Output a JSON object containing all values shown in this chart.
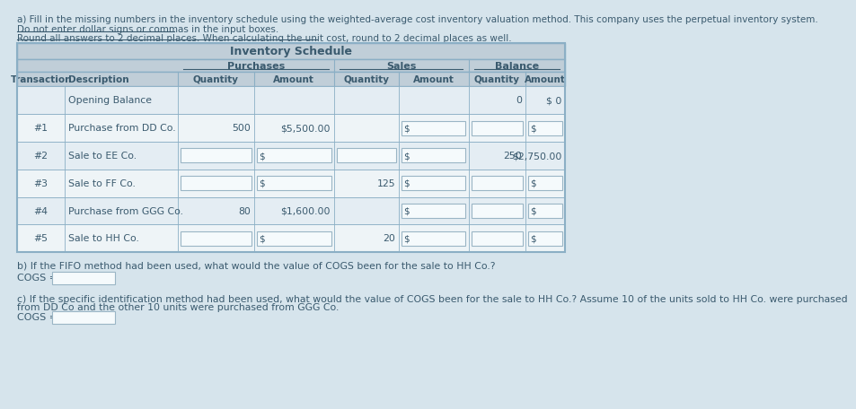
{
  "background_color": "#d6e4ec",
  "title_text": "a) Fill in the missing numbers in the inventory schedule using the weighted-average cost inventory valuation method. This company uses the perpetual inventory system.",
  "note1": "Do not enter dollar signs or commas in the input boxes.",
  "note2": "Round all answers to 2 decimal places. When calculating the unit cost, round to 2 decimal places as well.",
  "table_title": "Inventory Schedule",
  "rows": [
    {
      "transaction": "",
      "description": "Opening Balance",
      "purch_qty": "",
      "purch_amt": "",
      "sales_qty": "",
      "sales_amt": "",
      "bal_qty": "0",
      "bal_amt": "$ 0",
      "purch_qty_input": false,
      "purch_amt_input": false,
      "sales_qty_input": false,
      "sales_amt_input": false,
      "bal_qty_input": false,
      "bal_amt_input": false
    },
    {
      "transaction": "#1",
      "description": "Purchase from DD Co.",
      "purch_qty": "500",
      "purch_amt": "$5,500.00",
      "sales_qty": "",
      "sales_amt": "$",
      "bal_qty": "",
      "bal_amt": "$",
      "purch_qty_input": false,
      "purch_amt_input": false,
      "sales_qty_input": false,
      "sales_amt_input": true,
      "bal_qty_input": true,
      "bal_amt_input": true
    },
    {
      "transaction": "#2",
      "description": "Sale to EE Co.",
      "purch_qty": "",
      "purch_amt": "$",
      "sales_qty": "",
      "sales_amt": "$",
      "bal_qty": "250",
      "bal_amt": "$2,750.00",
      "purch_qty_input": true,
      "purch_amt_input": true,
      "sales_qty_input": true,
      "sales_amt_input": true,
      "bal_qty_input": false,
      "bal_amt_input": false
    },
    {
      "transaction": "#3",
      "description": "Sale to FF Co.",
      "purch_qty": "",
      "purch_amt": "$",
      "sales_qty": "125",
      "sales_amt": "$",
      "bal_qty": "",
      "bal_amt": "$",
      "purch_qty_input": true,
      "purch_amt_input": true,
      "sales_qty_input": false,
      "sales_amt_input": true,
      "bal_qty_input": true,
      "bal_amt_input": true
    },
    {
      "transaction": "#4",
      "description": "Purchase from GGG Co.",
      "purch_qty": "80",
      "purch_amt": "$1,600.00",
      "sales_qty": "",
      "sales_amt": "$",
      "bal_qty": "",
      "bal_amt": "$",
      "purch_qty_input": false,
      "purch_amt_input": false,
      "sales_qty_input": false,
      "sales_amt_input": true,
      "bal_qty_input": true,
      "bal_amt_input": true
    },
    {
      "transaction": "#5",
      "description": "Sale to HH Co.",
      "purch_qty": "",
      "purch_amt": "$",
      "sales_qty": "20",
      "sales_amt": "$",
      "bal_qty": "",
      "bal_amt": "$",
      "purch_qty_input": true,
      "purch_amt_input": true,
      "sales_qty_input": false,
      "sales_amt_input": true,
      "bal_qty_input": true,
      "bal_amt_input": true
    }
  ],
  "question_b": "b) If the FIFO method had been used, what would the value of COGS been for the sale to HH Co.?",
  "question_c1": "c) If the specific identification method had been used, what would the value of COGS been for the sale to HH Co.? Assume 10 of the units sold to HH Co. were purchased",
  "question_c2": "from DD Co and the other 10 units were purchased from GGG Co.",
  "cogs_label": "COGS = $",
  "table_border_color": "#8bafc5",
  "header_bg": "#c0ced8",
  "row_bg_light": "#eaf1f5",
  "row_bg_mid": "#dde8ef",
  "text_color": "#3a5a6e",
  "input_border": "#9ab5c5",
  "input_bg": "#f5fafc"
}
